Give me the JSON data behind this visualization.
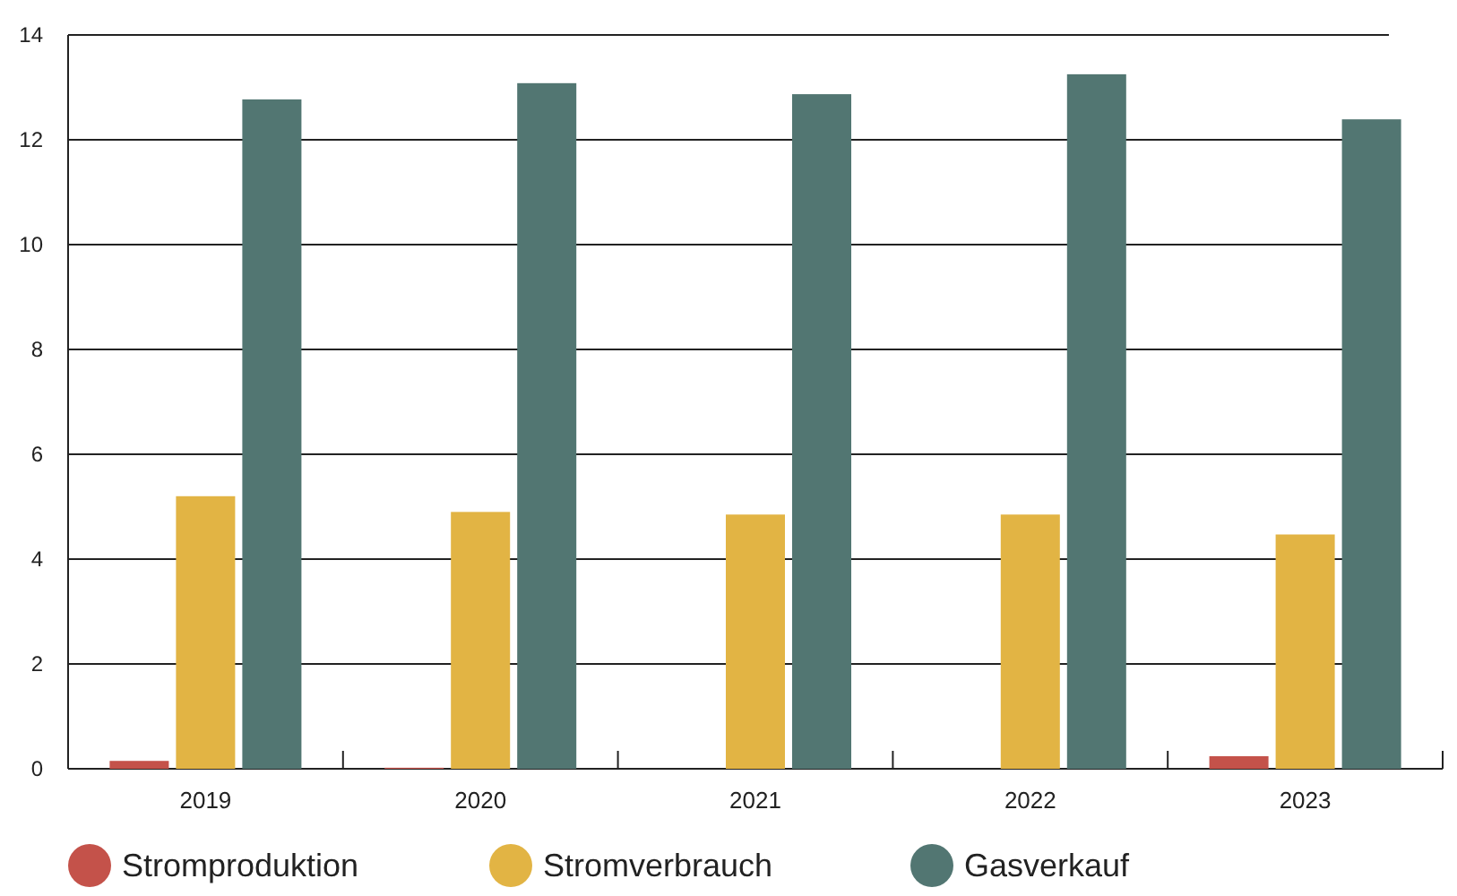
{
  "chart_data": {
    "type": "bar",
    "categories": [
      "2019",
      "2020",
      "2021",
      "2022",
      "2023"
    ],
    "series": [
      {
        "name": "Stromproduktion",
        "color": "#c4524a",
        "values": [
          0.15,
          0.02,
          0,
          0,
          0.24
        ]
      },
      {
        "name": "Stromverbrauch",
        "color": "#e2b444",
        "values": [
          5.2,
          4.9,
          4.85,
          4.85,
          4.47
        ]
      },
      {
        "name": "Gasverkauf",
        "color": "#527672",
        "values": [
          12.77,
          13.08,
          12.87,
          13.25,
          12.39
        ]
      }
    ],
    "ylim": [
      0,
      14
    ],
    "yticks": [
      0,
      2,
      4,
      6,
      8,
      10,
      12,
      14
    ],
    "grid": "y",
    "legend": "bottom"
  }
}
